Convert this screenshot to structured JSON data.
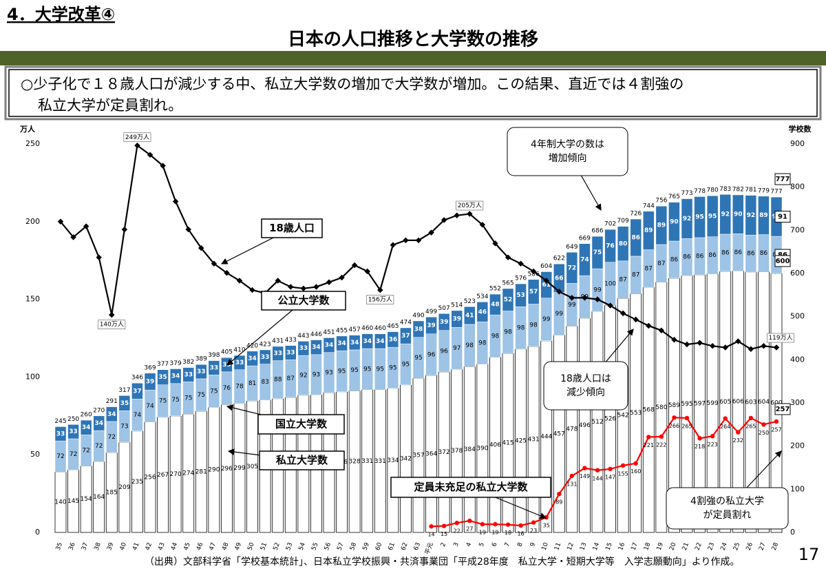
{
  "header": {
    "section": "4．大学改革④",
    "title": "日本の人口推移と大学数の推移",
    "summary": [
      "○少子化で１８歳人口が減少する中、私立大学数の増加で大学数が増加。この結果、直近では４割強の",
      "私立大学が定員割れ。"
    ]
  },
  "chart_data": {
    "type": "bar",
    "ylabel": "万人",
    "y2label": "学校数",
    "categories": [
      "35",
      "36",
      "37",
      "38",
      "39",
      "40",
      "41",
      "42",
      "43",
      "44",
      "45",
      "46",
      "47",
      "48",
      "49",
      "50",
      "51",
      "52",
      "53",
      "54",
      "55",
      "56",
      "57",
      "58",
      "59",
      "60",
      "61",
      "62",
      "63",
      "平元",
      "2",
      "3",
      "4",
      "5",
      "6",
      "7",
      "8",
      "9",
      "10",
      "11",
      "12",
      "13",
      "14",
      "15",
      "16",
      "17",
      "18",
      "19",
      "20",
      "21",
      "22",
      "23",
      "24",
      "25",
      "26",
      "27",
      "28"
    ],
    "ylim": [
      0,
      250
    ],
    "yticks": [
      0,
      50,
      100,
      150,
      200,
      250
    ],
    "y2lim": [
      0,
      900
    ],
    "y2ticks": [
      0,
      100,
      200,
      300,
      400,
      500,
      600,
      700,
      800,
      900
    ],
    "series": [
      {
        "name": "私立大学数",
        "type": "bar",
        "axis": "y2",
        "color": "#ffffff",
        "values": [
          140,
          145,
          154,
          164,
          185,
          209,
          235,
          256,
          267,
          270,
          274,
          281,
          290,
          296,
          299,
          305,
          307,
          310,
          313,
          318,
          319,
          324,
          326,
          328,
          331,
          331,
          334,
          342,
          357,
          364,
          372,
          378,
          384,
          390,
          406,
          415,
          425,
          431,
          444,
          457,
          478,
          496,
          512,
          526,
          542,
          553,
          568,
          580,
          589,
          595,
          597,
          599,
          605,
          606,
          603,
          604,
          600
        ]
      },
      {
        "name": "国立大学数",
        "type": "bar",
        "axis": "y2",
        "color": "#9dc3e6",
        "values": [
          72,
          72,
          72,
          72,
          72,
          73,
          74,
          74,
          75,
          75,
          75,
          75,
          75,
          76,
          78,
          81,
          83,
          88,
          87,
          92,
          93,
          93,
          95,
          95,
          95,
          95,
          95,
          95,
          95,
          96,
          96,
          97,
          98,
          98,
          98,
          98,
          98,
          98,
          99,
          99,
          99,
          99,
          99,
          100,
          87,
          87,
          87,
          87,
          86,
          86,
          86,
          86,
          86,
          86,
          86,
          86,
          86
        ]
      },
      {
        "name": "公立大学数",
        "type": "bar",
        "axis": "y2",
        "color": "#2e75b6",
        "values": [
          33,
          33,
          34,
          34,
          34,
          35,
          37,
          39,
          35,
          34,
          33,
          33,
          33,
          33,
          33,
          34,
          33,
          33,
          33,
          33,
          34,
          34,
          34,
          34,
          34,
          34,
          36,
          37,
          38,
          39,
          39,
          39,
          41,
          46,
          48,
          52,
          53,
          57,
          61,
          66,
          72,
          74,
          75,
          76,
          80,
          86,
          89,
          89,
          90,
          92,
          95,
          95,
          92,
          90,
          92,
          89,
          91
        ]
      },
      {
        "name": "18歳人口",
        "type": "line",
        "axis": "y",
        "color": "#000000",
        "values": [
          200,
          190,
          197,
          177,
          140,
          195,
          249,
          243,
          236,
          213,
          195,
          183,
          173,
          167,
          162,
          156,
          154,
          162,
          158,
          157,
          158,
          161,
          164,
          172,
          168,
          156,
          185,
          188,
          188,
          193,
          201,
          204,
          205,
          198,
          186,
          177,
          173,
          168,
          162,
          155,
          151,
          151,
          150,
          146,
          141,
          137,
          133,
          130,
          124,
          121,
          122,
          120,
          119,
          123,
          118,
          120,
          119
        ],
        "value_labels": [
          null,
          null,
          null,
          null,
          "140万人",
          null,
          "249万人",
          null,
          null,
          null,
          null,
          null,
          null,
          null,
          null,
          null,
          null,
          null,
          null,
          null,
          null,
          null,
          null,
          null,
          null,
          "156万人",
          null,
          null,
          null,
          null,
          null,
          null,
          "205万人",
          null,
          null,
          null,
          null,
          null,
          null,
          null,
          null,
          null,
          null,
          null,
          null,
          null,
          null,
          null,
          null,
          null,
          null,
          null,
          null,
          null,
          null,
          null,
          "119万人"
        ]
      },
      {
        "name": "定員未充足の私立大学数",
        "type": "line",
        "axis": "y2",
        "color": "#ff0000",
        "values": [
          null,
          null,
          null,
          null,
          null,
          null,
          null,
          null,
          null,
          null,
          null,
          null,
          null,
          null,
          null,
          null,
          null,
          null,
          null,
          null,
          null,
          null,
          null,
          null,
          null,
          null,
          null,
          null,
          null,
          14,
          15,
          22,
          27,
          19,
          19,
          18,
          16,
          23,
          35,
          89,
          131,
          149,
          144,
          147,
          155,
          160,
          221,
          222,
          266,
          265,
          218,
          223,
          264,
          232,
          265,
          250,
          257
        ]
      }
    ],
    "totals": [
      245,
      250,
      260,
      270,
      291,
      317,
      346,
      369,
      377,
      379,
      382,
      389,
      398,
      405,
      410,
      420,
      423,
      431,
      433,
      443,
      446,
      451,
      455,
      457,
      460,
      460,
      465,
      474,
      490,
      499,
      507,
      514,
      523,
      534,
      552,
      565,
      576,
      586,
      604,
      622,
      649,
      669,
      686,
      702,
      709,
      726,
      744,
      756,
      765,
      773,
      778,
      780,
      783,
      782,
      781,
      779,
      777
    ],
    "annotations": [
      [
        "4年制大学の数は",
        "増加傾向"
      ],
      [
        "18歳人口は",
        "減少傾向"
      ],
      [
        "4割強の私立大学",
        "が定員割れ"
      ]
    ]
  },
  "footer": {
    "source": "（出典）文部科学省「学校基本統計」、日本私立学校振興・共済事業団「平成28年度　私立大学・短期大学等　入学志願動向」より作成。",
    "page": "17"
  }
}
